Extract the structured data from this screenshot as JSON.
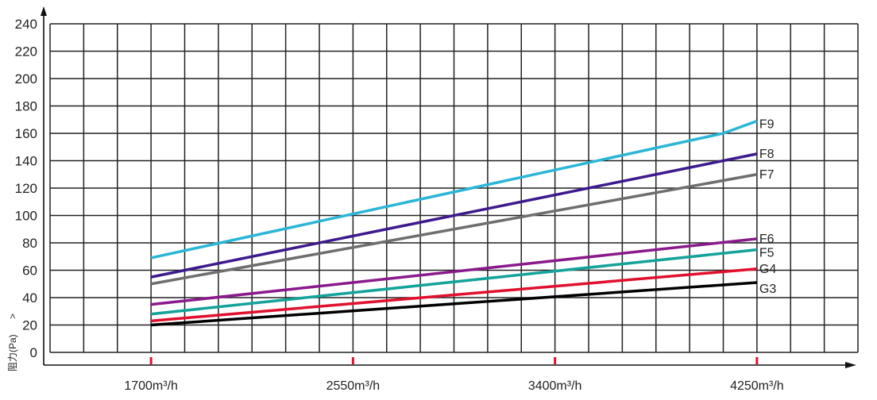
{
  "chart_data": {
    "type": "line",
    "title": "",
    "xlabel": "",
    "ylabel": "阻力(Pa)",
    "ylim": [
      0,
      240
    ],
    "yticks": [
      "0",
      "20",
      "40",
      "60",
      "80",
      "100",
      "120",
      "140",
      "160",
      "180",
      "200",
      "220",
      "240"
    ],
    "xlim": [
      1275,
      4675
    ],
    "xticks": [
      {
        "value": 1700,
        "label": "1700m³/h"
      },
      {
        "value": 2550,
        "label": "2550m³/h"
      },
      {
        "value": 3400,
        "label": "3400m³/h"
      },
      {
        "value": 4250,
        "label": "4250m³/h"
      }
    ],
    "grid": true,
    "series": [
      {
        "name": "F9",
        "color": "#2bb5d6",
        "points": [
          [
            1700,
            69
          ],
          [
            4108,
            160
          ],
          [
            4250,
            169
          ]
        ]
      },
      {
        "name": "F8",
        "color": "#3d1a8c",
        "points": [
          [
            1700,
            55
          ],
          [
            4250,
            145
          ]
        ]
      },
      {
        "name": "F7",
        "color": "#6e6e6e",
        "points": [
          [
            1700,
            50
          ],
          [
            4250,
            130
          ]
        ]
      },
      {
        "name": "F6",
        "color": "#8a1a8c",
        "points": [
          [
            1700,
            35
          ],
          [
            4250,
            83
          ]
        ]
      },
      {
        "name": "F5",
        "color": "#14a39a",
        "points": [
          [
            1700,
            28
          ],
          [
            4250,
            75
          ]
        ]
      },
      {
        "name": "G4",
        "color": "#e0102e",
        "points": [
          [
            1700,
            23
          ],
          [
            4250,
            61
          ]
        ]
      },
      {
        "name": "G3",
        "color": "#000000",
        "points": [
          [
            1700,
            20
          ],
          [
            4250,
            51
          ]
        ]
      }
    ]
  }
}
